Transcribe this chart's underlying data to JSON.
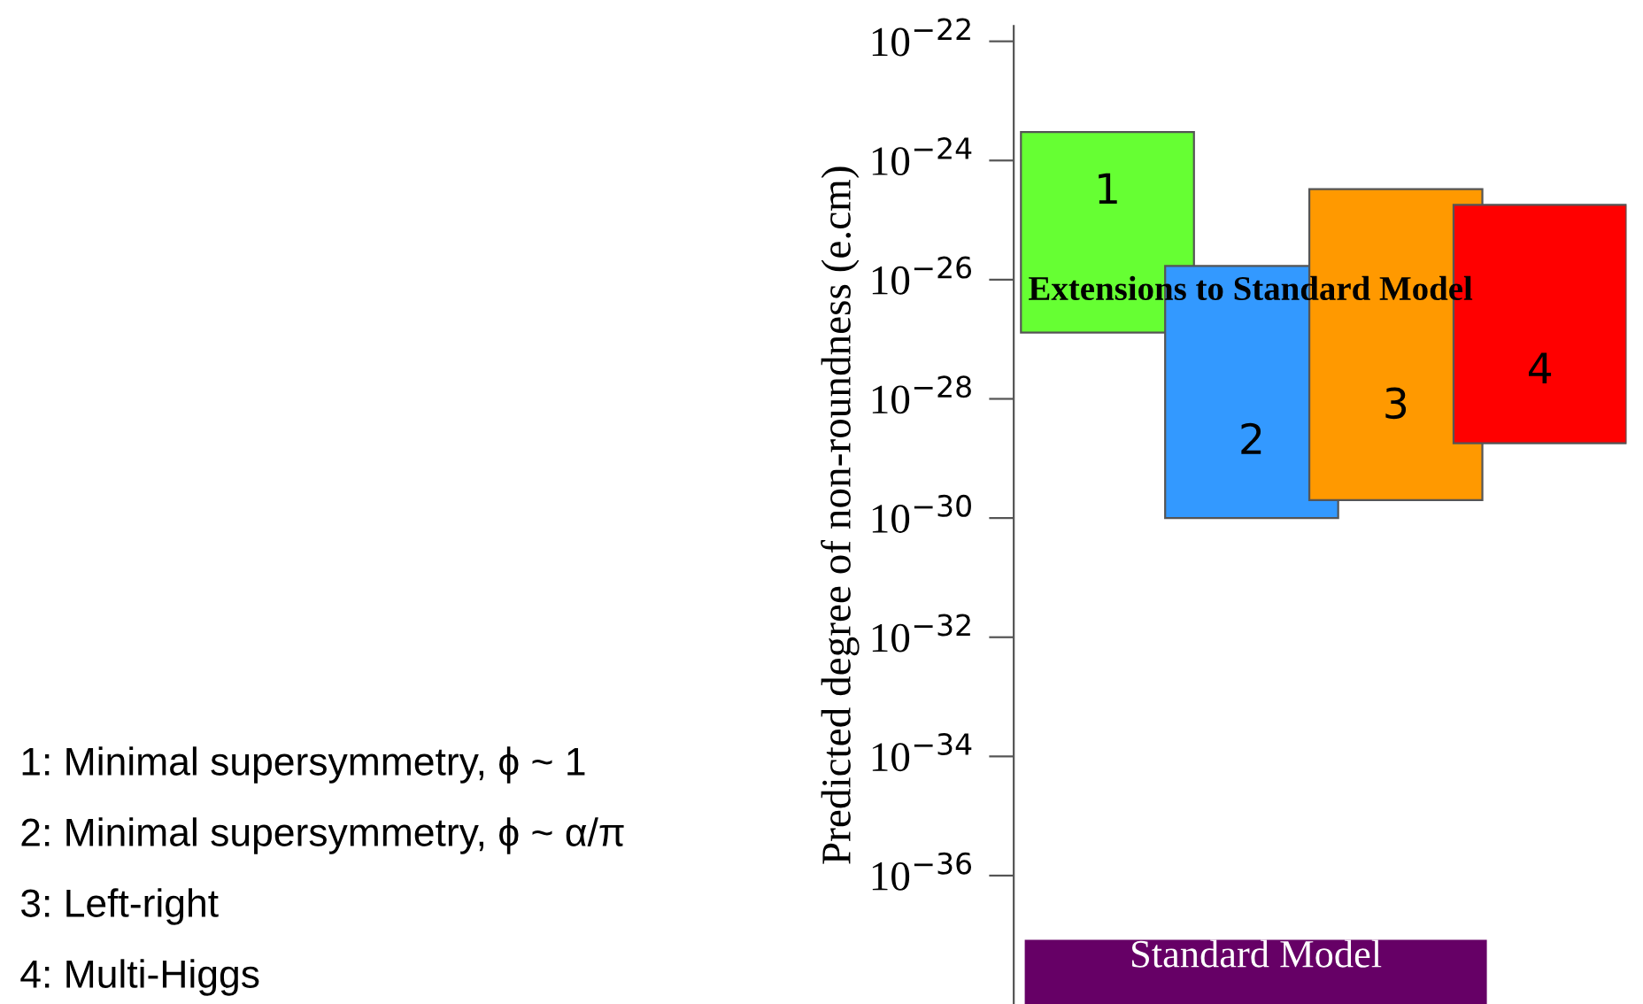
{
  "chart_data": {
    "type": "bar",
    "ylabel": "Predicted degree of non-roundness (e.cm)",
    "categories": [
      "1",
      "2",
      "3",
      "4"
    ],
    "values": [
      3e-24,
      1.7e-26,
      3.3e-25,
      1.8e-25
    ],
    "base": [
      1.3e-27,
      1e-30,
      2e-30,
      1.8e-29
    ],
    "colors": [
      "#66ff33",
      "#3399ff",
      "#ff9900",
      "#ff0000"
    ],
    "log": true,
    "ylim": [
      7e-39,
      1.8e-22
    ],
    "yticks": [
      {
        "value": 1e-22,
        "label": "10$^{−22}$"
      },
      {
        "value": 1e-24,
        "label": "10$^{−24}$"
      },
      {
        "value": 1e-26,
        "label": "10$^{−26}$"
      },
      {
        "value": 1e-28,
        "label": "10$^{−28}$"
      },
      {
        "value": 1e-30,
        "label": "10$^{−30}$"
      },
      {
        "value": 1e-32,
        "label": "10$^{−32}$"
      },
      {
        "value": 1e-34,
        "label": "10$^{−34}$"
      },
      {
        "value": 1e-36,
        "label": "10$^{−36}$"
      }
    ],
    "tick_labels": "y",
    "grid": false,
    "bands": [
      {
        "axis": "y",
        "from": 7e-39,
        "to": 8e-38,
        "label": "Standard Model",
        "color": "#660066"
      }
    ],
    "annotations": [
      "Extensions to Standard Model",
      "1: Minimal supersymmetry, ϕ ~ 1",
      "2: Minimal supersymmetry, ϕ ~ α/π",
      "3: Left-right",
      "4: Multi-Higgs"
    ]
  }
}
